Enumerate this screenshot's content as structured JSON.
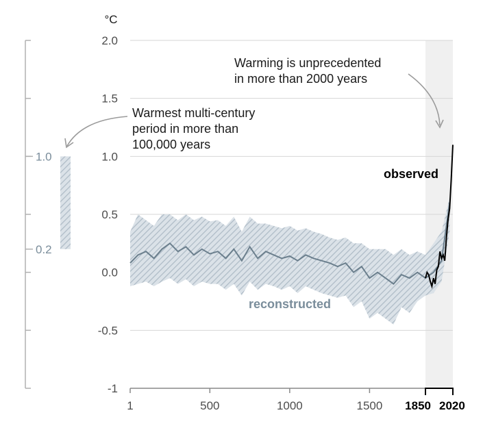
{
  "chart_data": {
    "type": "line",
    "unit_label": "°C",
    "y_ticks": [
      "2.0",
      "1.5",
      "1.0",
      "0.5",
      "0.0",
      "-0.5",
      "-1"
    ],
    "y_tick_values": [
      2.0,
      1.5,
      1.0,
      0.5,
      0.0,
      -0.5,
      -1.0
    ],
    "ylim": [
      -1.0,
      2.0
    ],
    "x_ticks": [
      "1",
      "500",
      "1000",
      "1500",
      "1850",
      "2020"
    ],
    "x_tick_values": [
      1,
      500,
      1000,
      1500,
      1850,
      2020
    ],
    "bold_x_ticks": [
      "1850",
      "2020"
    ],
    "xlim": [
      1,
      2020
    ],
    "observed_period": [
      1850,
      2020
    ],
    "series": [
      {
        "name": "reconstructed",
        "color": "#6b7f8d",
        "band_color": "#c3ced7",
        "x": [
          1,
          50,
          100,
          150,
          200,
          250,
          300,
          350,
          400,
          450,
          500,
          550,
          600,
          650,
          700,
          750,
          800,
          850,
          900,
          950,
          1000,
          1050,
          1100,
          1150,
          1200,
          1250,
          1300,
          1350,
          1400,
          1450,
          1500,
          1550,
          1600,
          1650,
          1700,
          1750,
          1800,
          1850,
          1900,
          1950,
          2000
        ],
        "values": [
          0.08,
          0.15,
          0.18,
          0.12,
          0.2,
          0.25,
          0.18,
          0.22,
          0.15,
          0.2,
          0.16,
          0.18,
          0.12,
          0.2,
          0.1,
          0.22,
          0.12,
          0.18,
          0.15,
          0.12,
          0.14,
          0.1,
          0.15,
          0.12,
          0.1,
          0.08,
          0.05,
          0.08,
          0.0,
          0.05,
          -0.05,
          0.0,
          -0.05,
          -0.1,
          -0.02,
          -0.05,
          0.0,
          -0.05,
          0.0,
          0.1,
          0.6
        ],
        "upper": [
          0.35,
          0.5,
          0.45,
          0.4,
          0.5,
          0.5,
          0.45,
          0.5,
          0.45,
          0.48,
          0.44,
          0.45,
          0.4,
          0.48,
          0.35,
          0.48,
          0.42,
          0.42,
          0.4,
          0.38,
          0.4,
          0.36,
          0.38,
          0.35,
          0.33,
          0.3,
          0.28,
          0.3,
          0.25,
          0.25,
          0.2,
          0.2,
          0.2,
          0.15,
          0.2,
          0.15,
          0.18,
          0.15,
          0.25,
          0.35,
          0.65
        ],
        "lower": [
          -0.12,
          -0.1,
          -0.08,
          -0.12,
          -0.08,
          -0.05,
          -0.1,
          -0.06,
          -0.12,
          -0.08,
          -0.1,
          -0.1,
          -0.15,
          -0.1,
          -0.2,
          -0.08,
          -0.15,
          -0.1,
          -0.12,
          -0.15,
          -0.12,
          -0.18,
          -0.12,
          -0.15,
          -0.18,
          -0.2,
          -0.22,
          -0.2,
          -0.3,
          -0.25,
          -0.4,
          -0.35,
          -0.4,
          -0.45,
          -0.3,
          -0.35,
          -0.25,
          -0.2,
          -0.18,
          -0.08,
          0.35
        ]
      },
      {
        "name": "observed",
        "color": "#000000",
        "x": [
          1850,
          1860,
          1870,
          1880,
          1890,
          1900,
          1910,
          1920,
          1930,
          1940,
          1950,
          1960,
          1970,
          1980,
          1990,
          2000,
          2010,
          2020
        ],
        "values": [
          -0.05,
          0.0,
          -0.02,
          -0.08,
          -0.12,
          -0.05,
          -0.1,
          0.02,
          0.05,
          0.18,
          0.12,
          0.15,
          0.1,
          0.3,
          0.45,
          0.55,
          0.8,
          1.1
        ]
      }
    ],
    "annotations": {
      "unprecedented": [
        "Warming is unprecedented",
        "in more than 2000 years"
      ],
      "warmest": [
        "Warmest multi-century",
        "period in more than",
        "100,000 years"
      ]
    },
    "side_scale": {
      "labels": [
        "1.0",
        "0.2"
      ],
      "values": [
        1.0,
        0.2
      ],
      "bar_range": [
        0.2,
        1.0
      ]
    }
  }
}
